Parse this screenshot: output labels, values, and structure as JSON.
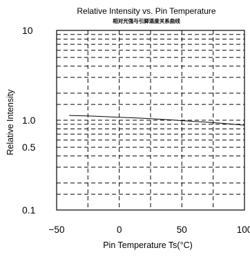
{
  "chart_data": {
    "type": "line",
    "title": "Relative Intensity vs. Pin Temperature",
    "subtitle": "相对光强与引脚温度关系曲线",
    "xlabel": "Pin Temperature Ts(°C)",
    "ylabel": "Relative Intensity",
    "x_scale": "linear",
    "y_scale": "log",
    "xlim": [
      -50,
      100
    ],
    "ylim": [
      0.1,
      10
    ],
    "x_ticks": [
      {
        "value": -50,
        "label": "−50"
      },
      {
        "value": 0,
        "label": "0"
      },
      {
        "value": 50,
        "label": "50"
      },
      {
        "value": 100,
        "label": "100"
      }
    ],
    "y_ticks": [
      {
        "value": 0.1,
        "label": "0.1"
      },
      {
        "value": 0.5,
        "label": "0.5"
      },
      {
        "value": 1.0,
        "label": "1.0"
      },
      {
        "value": 10,
        "label": "10"
      }
    ],
    "x_gridlines": [
      -25,
      0,
      25,
      50,
      75
    ],
    "y_gridlines": [
      0.15,
      0.2,
      0.3,
      0.4,
      0.5,
      0.6,
      0.7,
      0.8,
      0.9,
      1.0,
      1.5,
      2,
      3,
      4,
      5,
      6,
      7,
      8,
      9
    ],
    "grid": true,
    "grid_style": "dashed",
    "legend": false,
    "series": [
      {
        "x": [
          -40,
          -20,
          0,
          20,
          40,
          60,
          80,
          100
        ],
        "y": [
          1.13,
          1.11,
          1.08,
          1.05,
          1.01,
          0.97,
          0.93,
          0.88
        ]
      }
    ]
  }
}
